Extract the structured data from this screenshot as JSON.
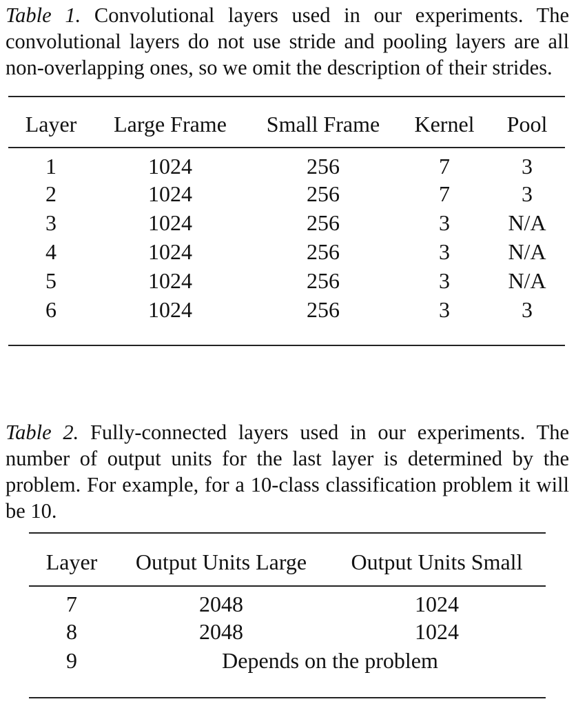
{
  "table1": {
    "caption_label": "Table 1.",
    "caption_text": " Convolutional layers used in our experiments. The convolutional layers do not use stride and pooling layers are all non-overlapping ones, so we omit the description of their strides.",
    "headers": [
      "Layer",
      "Large Frame",
      "Small Frame",
      "Kernel",
      "Pool"
    ],
    "rows": [
      [
        "1",
        "1024",
        "256",
        "7",
        "3"
      ],
      [
        "2",
        "1024",
        "256",
        "7",
        "3"
      ],
      [
        "3",
        "1024",
        "256",
        "3",
        "N/A"
      ],
      [
        "4",
        "1024",
        "256",
        "3",
        "N/A"
      ],
      [
        "5",
        "1024",
        "256",
        "3",
        "N/A"
      ],
      [
        "6",
        "1024",
        "256",
        "3",
        "3"
      ]
    ]
  },
  "table2": {
    "caption_label": "Table 2.",
    "caption_text": " Fully-connected layers used in our experiments. The number of output units for the last layer is determined by the problem. For example, for a 10-class classification problem it will be 10.",
    "headers": [
      "Layer",
      "Output Units Large",
      "Output Units Small"
    ],
    "rows": [
      [
        "7",
        "2048",
        "1024"
      ],
      [
        "8",
        "2048",
        "1024"
      ]
    ],
    "last_row": [
      "9",
      "Depends on the problem"
    ]
  }
}
